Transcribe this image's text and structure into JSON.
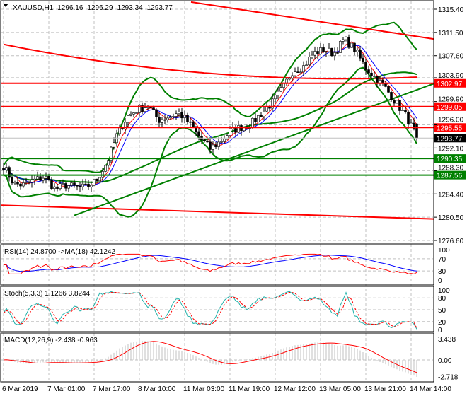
{
  "header": {
    "symbol_label": "XAUUSD,H1",
    "open": "1296.16",
    "high": "1296.29",
    "low": "1293.34",
    "close": "1293.77"
  },
  "colors": {
    "bull": "#000000",
    "bear": "#000000",
    "resistance": "#ff0000",
    "support": "#008000",
    "bollinger": "#008000",
    "rsi": "#ff0000",
    "rsi_ma": "#0000ff",
    "stoch_main": "#20b2aa",
    "stoch_signal": "#ff0000",
    "macd_hist": "#c0c0c0",
    "macd_signal": "#ff0000",
    "grid": "#c0c0c0"
  },
  "chart_data": {
    "type": "candlestick",
    "symbol": "XAUUSD",
    "timeframe": "H1",
    "y_ticks": [
      "1315.40",
      "1311.50",
      "1307.60",
      "1303.90",
      "1299.90",
      "1296.00",
      "1292.10",
      "1288.30",
      "1284.40",
      "1280.50",
      "1276.60"
    ],
    "ylim": [
      1276.6,
      1315.4
    ],
    "x_ticks": [
      "6 Mar 2019",
      "7 Mar 01:00",
      "7 Mar 17:00",
      "8 Mar 10:00",
      "11 Mar 03:00",
      "11 Mar 19:00",
      "12 Mar 12:00",
      "13 Mar 05:00",
      "13 Mar 21:00",
      "14 Mar 14:00"
    ],
    "close_path": [
      1289.1,
      1286.1,
      1285.9,
      1286.7,
      1287.3,
      1285.2,
      1285.9,
      1285.5,
      1285.5,
      1286.7,
      1289.7,
      1294.4,
      1297.4,
      1298.6,
      1299.2,
      1296.8,
      1297.4,
      1298.0,
      1296.2,
      1293.8,
      1292.0,
      1293.2,
      1295.0,
      1295.6,
      1296.2,
      1298.0,
      1299.7,
      1302.1,
      1305.1,
      1305.7,
      1308.0,
      1308.6,
      1308.0,
      1310.4,
      1308.6,
      1305.7,
      1303.9,
      1302.1,
      1299.7,
      1297.4,
      1293.77
    ],
    "levels": [
      {
        "price": 1302.97,
        "label": "1302.97",
        "color": "#ff0000"
      },
      {
        "price": 1299.05,
        "label": "1299.05",
        "color": "#ff0000"
      },
      {
        "price": 1295.55,
        "label": "1295.55",
        "color": "#ff0000"
      },
      {
        "price": 1290.35,
        "label": "1290.35",
        "color": "#008000"
      },
      {
        "price": 1287.56,
        "label": "1287.56",
        "color": "#008000"
      }
    ],
    "current_price": {
      "price": 1293.77,
      "label": "1293.77"
    },
    "trendlines": [
      {
        "color": "#ff0000",
        "from": [
          "7 Mar 19:00",
          1316.6
        ],
        "to": [
          "14 Mar 14:00",
          1310.4
        ]
      },
      {
        "color": "#ff0000",
        "from": [
          "6 Mar 2019",
          1282.5
        ],
        "to": [
          "14 Mar 14:00",
          1280.2
        ]
      },
      {
        "color": "#008000",
        "from": [
          "7 Mar 09:00",
          1280.8
        ],
        "to": [
          "14 Mar 14:00",
          1302.9
        ]
      }
    ]
  },
  "rsi": {
    "label": "RSI(14) 24.8700  ->MA(18) 42.1242",
    "ticks": [
      "100",
      "70",
      "30",
      "0"
    ]
  },
  "stoch": {
    "label": "Stoch(5,3,3) 1.1266 3.8244",
    "ticks": [
      "100",
      "80",
      "50",
      "20",
      "0"
    ]
  },
  "macd": {
    "label": "MACD(12,26,9) -2.438 -0.963",
    "ticks": [
      "3.438",
      "0.00",
      "-2.718"
    ]
  }
}
